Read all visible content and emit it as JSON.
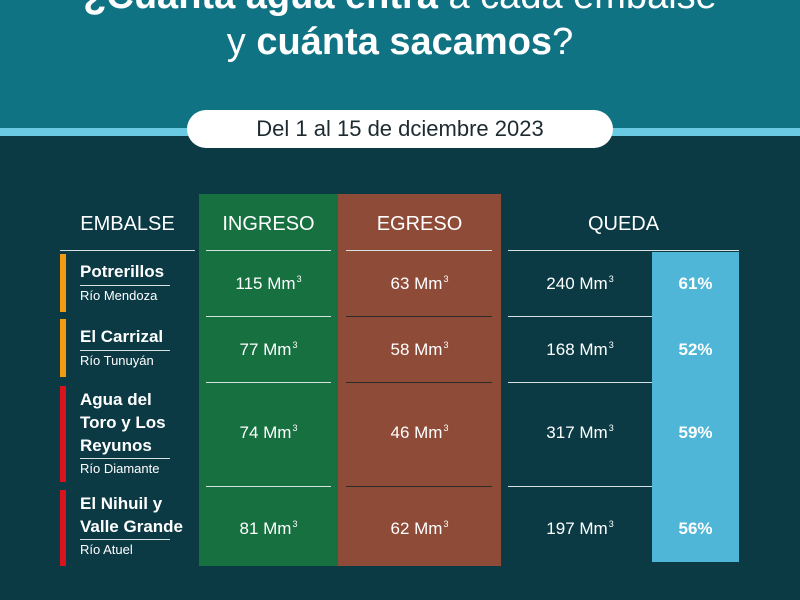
{
  "title": {
    "line1_part1": "¿Cuánta agua entra",
    "line1_part2": " a cada embalse",
    "line2_prefix": "y ",
    "line2_bold": "cuánta sacamos",
    "line2_suffix": "?"
  },
  "period_label": "Del 1 al 15 de dciembre 2023",
  "columns": {
    "embalse": "EMBALSE",
    "ingreso": "INGRESO",
    "egreso": "EGRESO",
    "queda": "QUEDA"
  },
  "unit_suffix": "3",
  "colors": {
    "header": "#0f7383",
    "background": "#0b3a44",
    "ingreso": "#177040",
    "egreso": "#8e4b37",
    "percent": "#4fb6d8",
    "status_orange": "#f29a12",
    "status_red": "#d8141c"
  },
  "rows": [
    {
      "name": "Potrerillos",
      "river": "Río Mendoza",
      "ingreso": "115 Mm",
      "egreso": "63 Mm",
      "queda": "240 Mm",
      "percent": "61%",
      "status_color": "#f29a12"
    },
    {
      "name": "El Carrizal",
      "river": "Río Tunuyán",
      "ingreso": "77 Mm",
      "egreso": "58 Mm",
      "queda": "168 Mm",
      "percent": "52%",
      "status_color": "#f29a12"
    },
    {
      "name_lines": [
        "Agua del",
        "Toro y Los",
        "Reyunos"
      ],
      "river": "Río Diamante",
      "ingreso": "74 Mm",
      "egreso": "46 Mm",
      "queda": "317 Mm",
      "percent": "59%",
      "status_color": "#d8141c"
    },
    {
      "name_lines": [
        "El Nihuil y",
        "Valle Grande"
      ],
      "river": "Río Atuel",
      "ingreso": "81 Mm",
      "egreso": "62 Mm",
      "queda": "197 Mm",
      "percent": "56%",
      "status_color": "#d8141c"
    }
  ]
}
